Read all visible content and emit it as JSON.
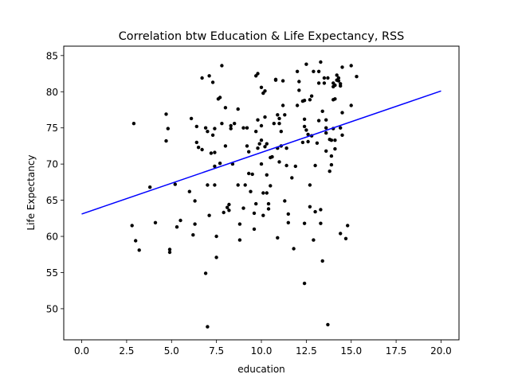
{
  "chart_data": {
    "type": "scatter",
    "title": "Correlation btw Education & Life Expectancy, RSS",
    "xlabel": "education",
    "ylabel": "Life Expectancy",
    "xlim": [
      -1.0,
      21.0
    ],
    "ylim": [
      45.7,
      86.3
    ],
    "xticks": [
      0.0,
      2.5,
      5.0,
      7.5,
      10.0,
      12.5,
      15.0,
      17.5,
      20.0
    ],
    "xtick_labels": [
      "0.0",
      "2.5",
      "5.0",
      "7.5",
      "10.0",
      "12.5",
      "15.0",
      "17.5",
      "20.0"
    ],
    "yticks": [
      50,
      55,
      60,
      65,
      70,
      75,
      80,
      85
    ],
    "ytick_labels": [
      "50",
      "55",
      "60",
      "65",
      "70",
      "75",
      "80",
      "85"
    ],
    "grid": false,
    "series": [
      {
        "kind": "points",
        "color": "#000000",
        "points": [
          [
            2.9,
            75.6
          ],
          [
            2.8,
            61.5
          ],
          [
            3.0,
            59.4
          ],
          [
            3.2,
            58.1
          ],
          [
            3.8,
            66.8
          ],
          [
            4.1,
            61.9
          ],
          [
            4.7,
            76.9
          ],
          [
            4.7,
            73.2
          ],
          [
            4.8,
            74.9
          ],
          [
            4.9,
            58.2
          ],
          [
            4.9,
            57.8
          ],
          [
            5.2,
            67.2
          ],
          [
            5.3,
            61.3
          ],
          [
            5.5,
            62.2
          ],
          [
            6.0,
            66.2
          ],
          [
            6.1,
            76.3
          ],
          [
            6.2,
            60.2
          ],
          [
            6.3,
            61.7
          ],
          [
            6.3,
            64.9
          ],
          [
            6.4,
            75.2
          ],
          [
            6.4,
            73.0
          ],
          [
            6.5,
            72.3
          ],
          [
            6.7,
            72.0
          ],
          [
            6.7,
            81.9
          ],
          [
            6.9,
            75.0
          ],
          [
            6.9,
            54.9
          ],
          [
            7.0,
            74.5
          ],
          [
            7.0,
            47.5
          ],
          [
            7.0,
            67.1
          ],
          [
            7.1,
            62.9
          ],
          [
            7.1,
            82.2
          ],
          [
            7.2,
            71.5
          ],
          [
            7.3,
            74.0
          ],
          [
            7.3,
            81.3
          ],
          [
            7.4,
            74.9
          ],
          [
            7.4,
            69.7
          ],
          [
            7.4,
            67.1
          ],
          [
            7.4,
            71.6
          ],
          [
            7.5,
            57.1
          ],
          [
            7.5,
            60.0
          ],
          [
            7.6,
            79.0
          ],
          [
            7.7,
            79.2
          ],
          [
            7.7,
            70.1
          ],
          [
            7.8,
            83.6
          ],
          [
            7.8,
            75.6
          ],
          [
            7.9,
            63.3
          ],
          [
            8.0,
            77.8
          ],
          [
            8.0,
            72.5
          ],
          [
            8.1,
            64.0
          ],
          [
            8.2,
            63.6
          ],
          [
            8.2,
            64.4
          ],
          [
            8.3,
            74.9
          ],
          [
            8.3,
            75.3
          ],
          [
            8.4,
            70.0
          ],
          [
            8.5,
            75.6
          ],
          [
            8.7,
            77.6
          ],
          [
            8.7,
            67.1
          ],
          [
            8.8,
            59.5
          ],
          [
            8.8,
            61.7
          ],
          [
            9.0,
            63.9
          ],
          [
            9.0,
            75.0
          ],
          [
            9.1,
            67.1
          ],
          [
            9.2,
            75.0
          ],
          [
            9.2,
            72.5
          ],
          [
            9.3,
            68.7
          ],
          [
            9.3,
            71.7
          ],
          [
            9.4,
            66.2
          ],
          [
            9.5,
            68.6
          ],
          [
            9.6,
            61.0
          ],
          [
            9.6,
            63.2
          ],
          [
            9.7,
            74.5
          ],
          [
            9.7,
            82.2
          ],
          [
            9.7,
            64.5
          ],
          [
            9.8,
            82.5
          ],
          [
            9.8,
            72.2
          ],
          [
            9.8,
            76.1
          ],
          [
            9.9,
            72.8
          ],
          [
            10.0,
            80.6
          ],
          [
            10.0,
            73.3
          ],
          [
            10.0,
            75.3
          ],
          [
            10.0,
            70.0
          ],
          [
            10.1,
            62.9
          ],
          [
            10.1,
            79.8
          ],
          [
            10.1,
            66.0
          ],
          [
            10.2,
            80.1
          ],
          [
            10.2,
            72.4
          ],
          [
            10.2,
            76.5
          ],
          [
            10.3,
            66.0
          ],
          [
            10.3,
            68.5
          ],
          [
            10.3,
            72.8
          ],
          [
            10.4,
            63.8
          ],
          [
            10.4,
            64.5
          ],
          [
            10.5,
            67.0
          ],
          [
            10.5,
            70.9
          ],
          [
            10.6,
            71.0
          ],
          [
            10.7,
            75.6
          ],
          [
            10.8,
            81.7
          ],
          [
            10.8,
            81.6
          ],
          [
            10.9,
            72.2
          ],
          [
            10.9,
            76.8
          ],
          [
            10.9,
            59.8
          ],
          [
            11.0,
            76.3
          ],
          [
            11.0,
            70.3
          ],
          [
            11.0,
            75.6
          ],
          [
            11.1,
            72.5
          ],
          [
            11.1,
            74.5
          ],
          [
            11.2,
            78.1
          ],
          [
            11.2,
            81.5
          ],
          [
            11.3,
            64.9
          ],
          [
            11.3,
            76.8
          ],
          [
            11.4,
            72.2
          ],
          [
            11.4,
            69.8
          ],
          [
            11.5,
            63.1
          ],
          [
            11.5,
            61.9
          ],
          [
            11.7,
            68.1
          ],
          [
            11.8,
            58.3
          ],
          [
            11.9,
            69.7
          ],
          [
            12.0,
            78.1
          ],
          [
            12.0,
            82.8
          ],
          [
            12.1,
            80.2
          ],
          [
            12.1,
            81.4
          ],
          [
            12.3,
            73.0
          ],
          [
            12.3,
            78.7
          ],
          [
            12.4,
            61.8
          ],
          [
            12.4,
            75.2
          ],
          [
            12.4,
            76.2
          ],
          [
            12.4,
            78.8
          ],
          [
            12.5,
            74.7
          ],
          [
            12.4,
            53.5
          ],
          [
            12.5,
            83.8
          ],
          [
            12.6,
            73.1
          ],
          [
            12.6,
            74.1
          ],
          [
            12.7,
            67.1
          ],
          [
            12.7,
            64.1
          ],
          [
            12.7,
            78.9
          ],
          [
            12.8,
            79.4
          ],
          [
            12.8,
            73.9
          ],
          [
            12.9,
            82.8
          ],
          [
            12.9,
            59.5
          ],
          [
            13.0,
            69.8
          ],
          [
            13.0,
            63.4
          ],
          [
            13.1,
            72.9
          ],
          [
            13.2,
            82.8
          ],
          [
            13.2,
            81.2
          ],
          [
            13.2,
            76.0
          ],
          [
            13.3,
            61.8
          ],
          [
            13.3,
            63.7
          ],
          [
            13.3,
            84.1
          ],
          [
            13.4,
            56.6
          ],
          [
            13.4,
            77.3
          ],
          [
            13.5,
            81.9
          ],
          [
            13.5,
            81.2
          ],
          [
            13.6,
            75.0
          ],
          [
            13.6,
            74.3
          ],
          [
            13.6,
            71.8
          ],
          [
            13.6,
            76.1
          ],
          [
            13.7,
            47.8
          ],
          [
            13.7,
            81.9
          ],
          [
            13.8,
            73.4
          ],
          [
            13.8,
            69.0
          ],
          [
            13.9,
            69.9
          ],
          [
            13.9,
            71.1
          ],
          [
            13.9,
            73.3
          ],
          [
            14.0,
            74.9
          ],
          [
            14.0,
            78.9
          ],
          [
            14.0,
            81.2
          ],
          [
            14.0,
            80.7
          ],
          [
            14.1,
            79.0
          ],
          [
            14.1,
            72.1
          ],
          [
            14.1,
            80.9
          ],
          [
            14.1,
            73.3
          ],
          [
            14.2,
            82.3
          ],
          [
            14.2,
            81.6
          ],
          [
            14.3,
            81.9
          ],
          [
            14.3,
            81.5
          ],
          [
            14.4,
            80.8
          ],
          [
            14.4,
            60.4
          ],
          [
            14.4,
            75.0
          ],
          [
            14.4,
            81.1
          ],
          [
            14.5,
            77.1
          ],
          [
            14.5,
            74.0
          ],
          [
            14.5,
            83.4
          ],
          [
            14.7,
            59.7
          ],
          [
            14.8,
            61.5
          ],
          [
            15.0,
            83.6
          ],
          [
            15.0,
            78.1
          ],
          [
            15.3,
            82.1
          ]
        ]
      },
      {
        "kind": "fit-line",
        "color": "#0000ff",
        "points": [
          [
            0.0,
            63.1
          ],
          [
            20.0,
            80.1
          ]
        ]
      }
    ]
  }
}
